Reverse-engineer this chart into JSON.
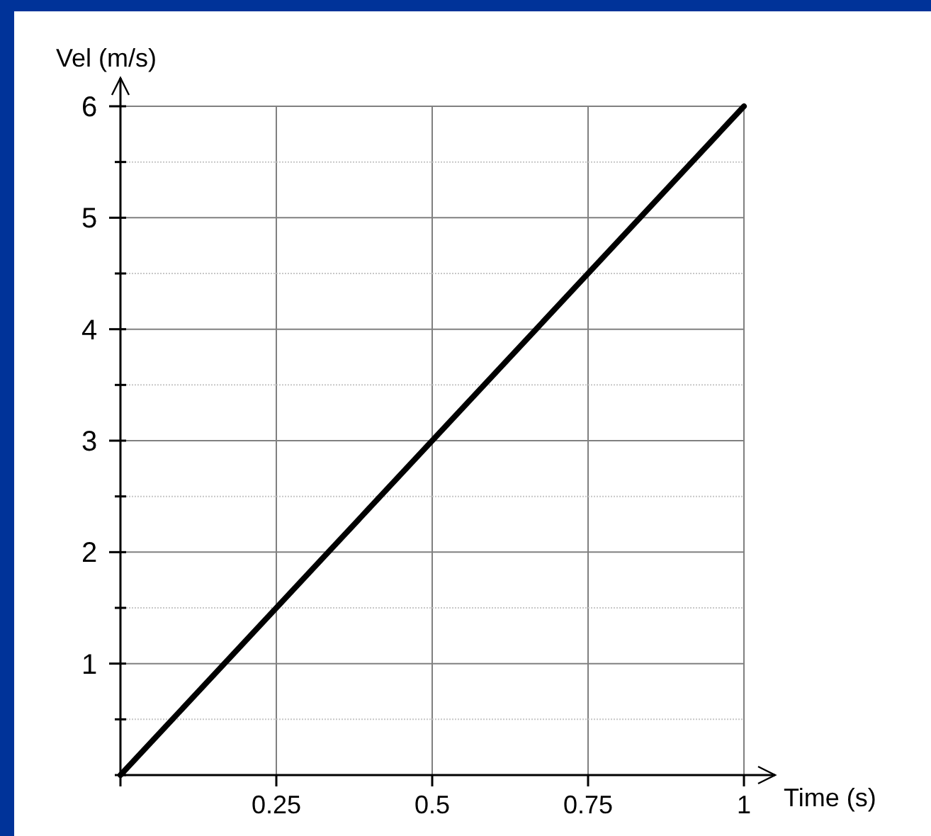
{
  "chart_data": {
    "type": "line",
    "xlabel": "Time (s)",
    "ylabel": "Vel (m/s)",
    "x": [
      0,
      1
    ],
    "series": [
      {
        "color": "#000000",
        "values": [
          0,
          6
        ]
      }
    ],
    "xlim": [
      0,
      1
    ],
    "ylim": [
      0,
      6
    ],
    "xticks": [
      {
        "value": 0,
        "label": null
      },
      0.25,
      0.5,
      0.75,
      1
    ],
    "yticks": [
      {
        "value": 0,
        "label": null
      },
      {
        "value": 0.5,
        "label": null
      },
      1,
      {
        "value": 1.5,
        "label": null
      },
      2,
      {
        "value": 2.5,
        "label": null
      },
      3,
      {
        "value": 3.5,
        "label": null
      },
      4,
      {
        "value": 4.5,
        "label": null
      },
      5,
      {
        "value": 5.5,
        "label": null
      },
      6
    ],
    "grid": true,
    "marker": "none",
    "line_style": "solid"
  }
}
